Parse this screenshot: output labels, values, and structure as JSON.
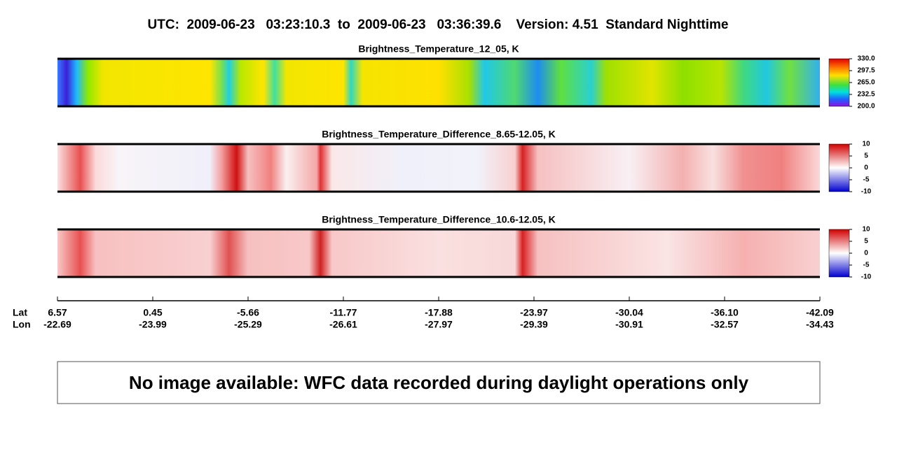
{
  "header": {
    "title": "UTC:  2009-06-23   03:23:10.3  to  2009-06-23   03:36:39.6    Version: 4.51  Standard Nighttime"
  },
  "panels": [
    {
      "title": "Brightness_Temperature_12_05, K",
      "colorbar_ticks": [
        "330.0",
        "297.5",
        "265.0",
        "232.5",
        "200.0"
      ]
    },
    {
      "title": "Brightness_Temperature_Difference_8.65-12.05, K",
      "colorbar_ticks": [
        "10",
        "5",
        "0",
        "-5",
        "-10"
      ]
    },
    {
      "title": "Brightness_Temperature_Difference_10.6-12.05, K",
      "colorbar_ticks": [
        "10",
        "5",
        "0",
        "-5",
        "-10"
      ]
    }
  ],
  "axis": {
    "lat_label": "Lat",
    "lon_label": "Lon",
    "lat": [
      "6.57",
      "0.45",
      "-5.66",
      "-11.77",
      "-17.88",
      "-23.97",
      "-30.04",
      "-36.10",
      "-42.09"
    ],
    "lon": [
      "-22.69",
      "-23.99",
      "-25.29",
      "-26.61",
      "-27.97",
      "-29.39",
      "-30.91",
      "-32.57",
      "-34.43"
    ]
  },
  "message": "No image available: WFC data recorded during daylight operations only"
}
